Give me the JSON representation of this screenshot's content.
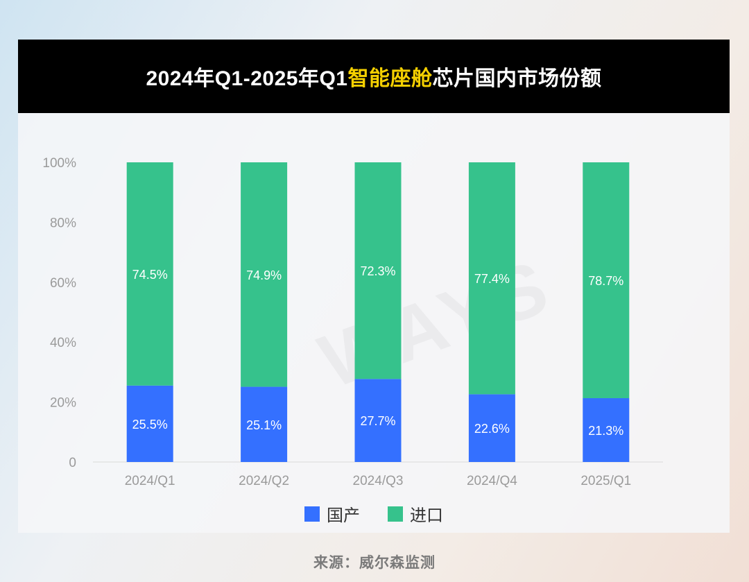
{
  "title": {
    "prefix": "2024年Q1-2025年Q1",
    "highlight": "智能座舱",
    "suffix": "芯片国内市场份额",
    "highlight_color": "#f5d000"
  },
  "watermark": "WAYS",
  "source": "来源：威尔森监测",
  "colors": {
    "domestic": "#3470ff",
    "imported": "#36c28c"
  },
  "chart_data": {
    "type": "bar",
    "stacked": true,
    "categories": [
      "2024/Q1",
      "2024/Q2",
      "2024/Q3",
      "2024/Q4",
      "2025/Q1"
    ],
    "series": [
      {
        "name": "国产",
        "values": [
          25.5,
          25.1,
          27.7,
          22.6,
          21.3
        ],
        "labels": [
          "25.5%",
          "25.1%",
          "27.7%",
          "22.6%",
          "21.3%"
        ],
        "color": "#3470ff"
      },
      {
        "name": "进口",
        "values": [
          74.5,
          74.9,
          72.3,
          77.4,
          78.7
        ],
        "labels": [
          "74.5%",
          "74.9%",
          "72.3%",
          "77.4%",
          "78.7%"
        ],
        "color": "#36c28c"
      }
    ],
    "yticks": [
      "0",
      "20%",
      "40%",
      "60%",
      "80%",
      "100%"
    ],
    "ylim": [
      0,
      100
    ],
    "grid": false,
    "legend": "bottom-center"
  }
}
